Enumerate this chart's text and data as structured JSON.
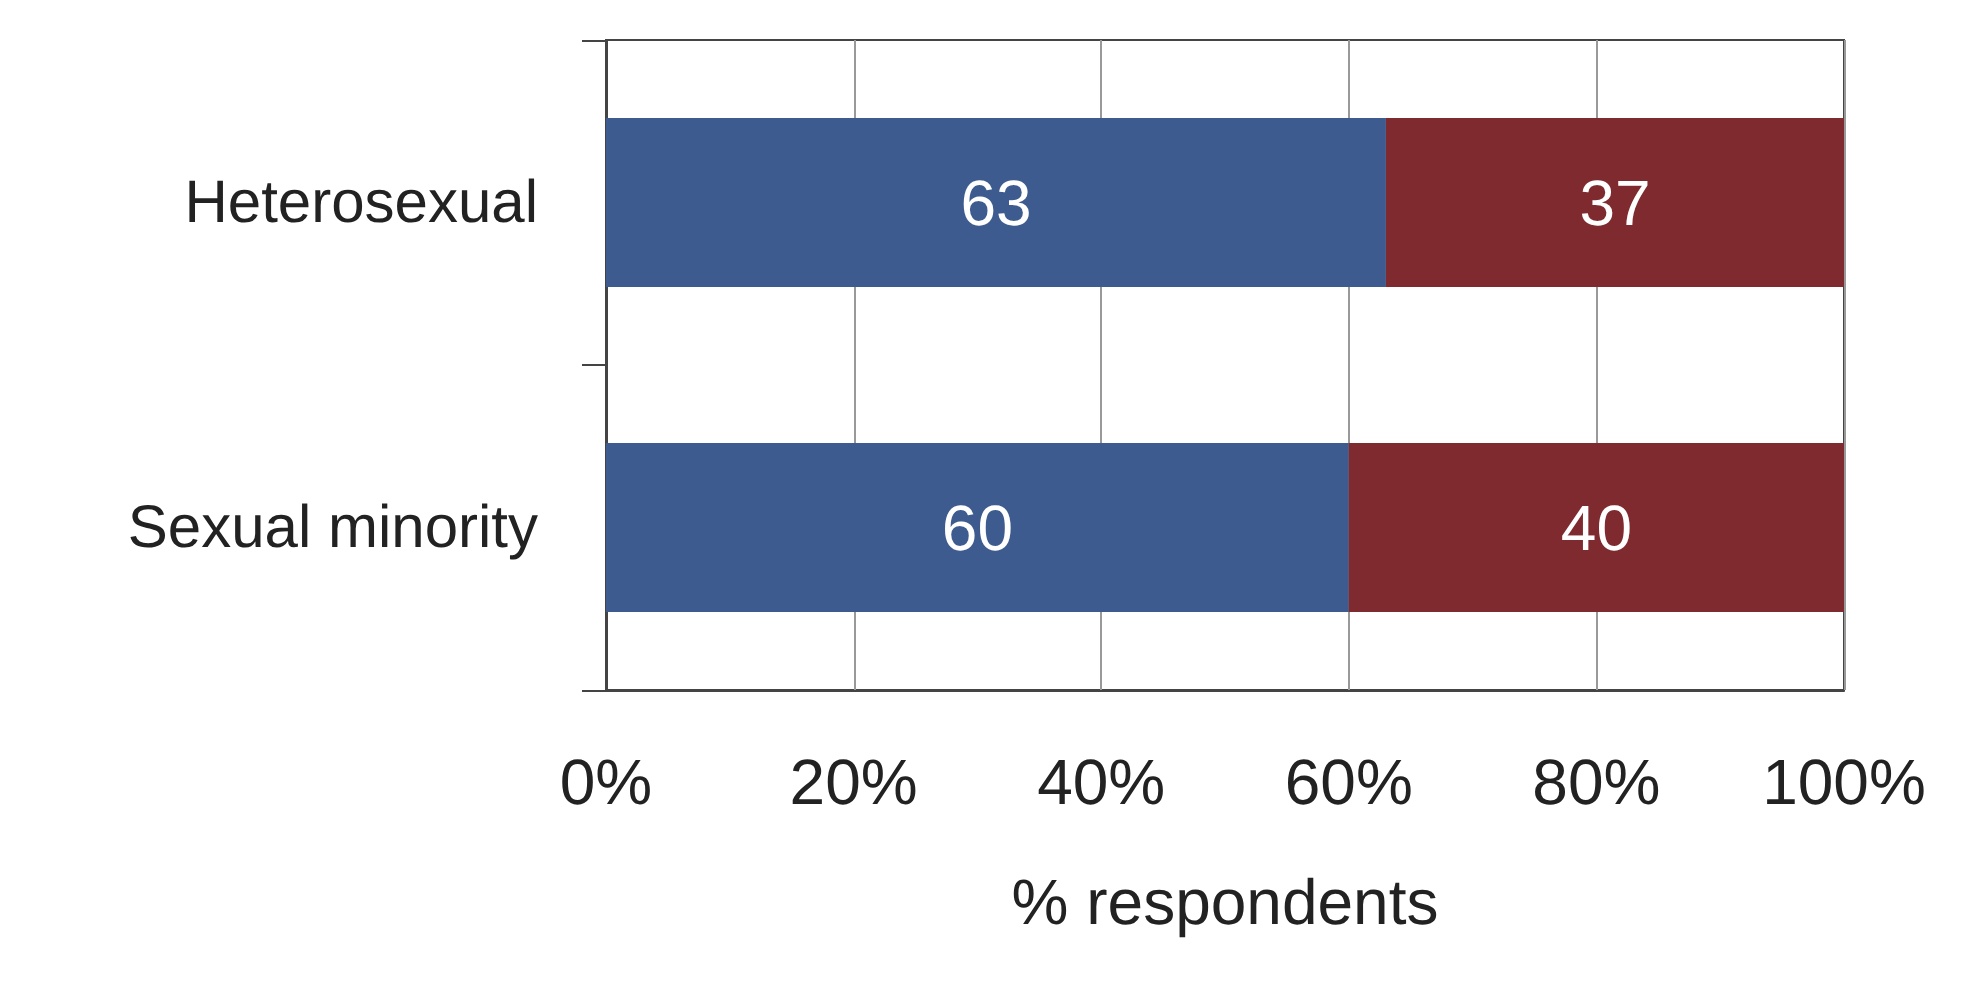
{
  "chart_data": {
    "type": "bar",
    "orientation": "horizontal",
    "stacked": true,
    "categories": [
      "Heterosexual",
      "Sexual minority"
    ],
    "series": [
      {
        "color": "#3d5b8f",
        "values": [
          63,
          60
        ]
      },
      {
        "color": "#7f2a2e",
        "values": [
          37,
          40
        ]
      }
    ],
    "xlim": [
      0,
      100
    ],
    "xticks": [
      {
        "value": 0,
        "label": "0%"
      },
      {
        "value": 20,
        "label": "20%"
      },
      {
        "value": 40,
        "label": "40%"
      },
      {
        "value": 60,
        "label": "60%"
      },
      {
        "value": 80,
        "label": "80%"
      },
      {
        "value": 100,
        "label": "100%"
      }
    ],
    "xlabel": "% respondents",
    "grid": "x",
    "data_labels": true
  }
}
